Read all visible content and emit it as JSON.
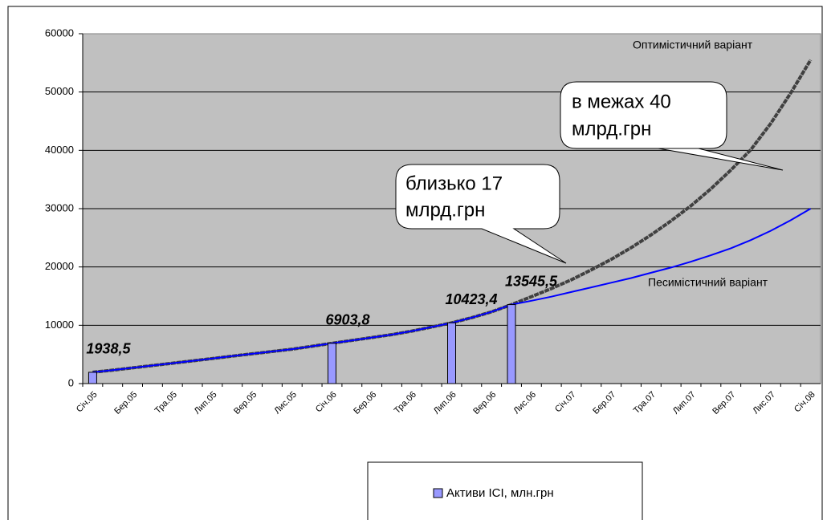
{
  "chart_data": {
    "type": "line",
    "categories": [
      "Січ.05",
      null,
      "Бер.05",
      null,
      "Тра.05",
      null,
      "Лип.05",
      null,
      "Вер.05",
      null,
      "Лис.05",
      null,
      "Січ.06",
      null,
      "Бер.06",
      null,
      "Тра.06",
      null,
      "Лип.06",
      null,
      "Вер.06",
      null,
      "Лис.06",
      null,
      "Січ.07",
      null,
      "Бер.07",
      null,
      "Тра.07",
      null,
      "Лип.07",
      null,
      "Вер.07",
      null,
      "Лис.07",
      null,
      "Січ.08"
    ],
    "series": [
      {
        "name": "Активи ІСІ, млн.грн",
        "type": "bar",
        "color": "#9999ff",
        "values": [
          1938.5,
          null,
          null,
          null,
          null,
          null,
          null,
          null,
          null,
          null,
          null,
          null,
          6903.8,
          null,
          null,
          null,
          null,
          null,
          10423.4,
          null,
          null,
          13545.5,
          null,
          null,
          null,
          null,
          null,
          null,
          null,
          null,
          null,
          null,
          null,
          null,
          null,
          null,
          null
        ],
        "value_labels": [
          "1938,5",
          null,
          null,
          null,
          null,
          null,
          null,
          null,
          null,
          null,
          null,
          null,
          "6903,8",
          null,
          null,
          null,
          null,
          null,
          "10423,4",
          null,
          null,
          "13545,5",
          null,
          null,
          null,
          null,
          null,
          null,
          null,
          null,
          null,
          null,
          null,
          null,
          null,
          null,
          null
        ]
      },
      {
        "type": "line",
        "color": "#404040",
        "values": [
          1939,
          2300,
          2700,
          3100,
          3500,
          3900,
          4300,
          4700,
          5100,
          5500,
          5900,
          6400,
          6904,
          7400,
          7900,
          8400,
          9000,
          9700,
          10423,
          11300,
          12300,
          13546,
          14900,
          16300,
          17800,
          19500,
          21300,
          23300,
          25500,
          27900,
          30500,
          33400,
          36600,
          40100,
          44600,
          49800,
          55500
        ]
      },
      {
        "type": "line",
        "color": "#0000ff",
        "values": [
          1939,
          2300,
          2700,
          3100,
          3500,
          3900,
          4300,
          4700,
          5100,
          5500,
          5900,
          6400,
          6904,
          7400,
          7900,
          8400,
          9000,
          9700,
          10423,
          11300,
          12300,
          13546,
          14200,
          14900,
          15700,
          16500,
          17300,
          18100,
          19000,
          19900,
          20900,
          22000,
          23200,
          24600,
          26200,
          28000,
          30000
        ]
      }
    ],
    "ylim": [
      0,
      60000
    ],
    "yticks": [
      0,
      10000,
      20000,
      30000,
      40000,
      50000,
      60000
    ],
    "grid": true,
    "annotations": [
      {
        "text": "Оптимістичний варіант"
      },
      {
        "text": "Песимістичний варіант"
      },
      {
        "lines": [
          "в межах 40",
          "млрд.грн"
        ]
      },
      {
        "lines": [
          "близько 17",
          "млрд.грн"
        ]
      }
    ],
    "legend": "bottom"
  }
}
